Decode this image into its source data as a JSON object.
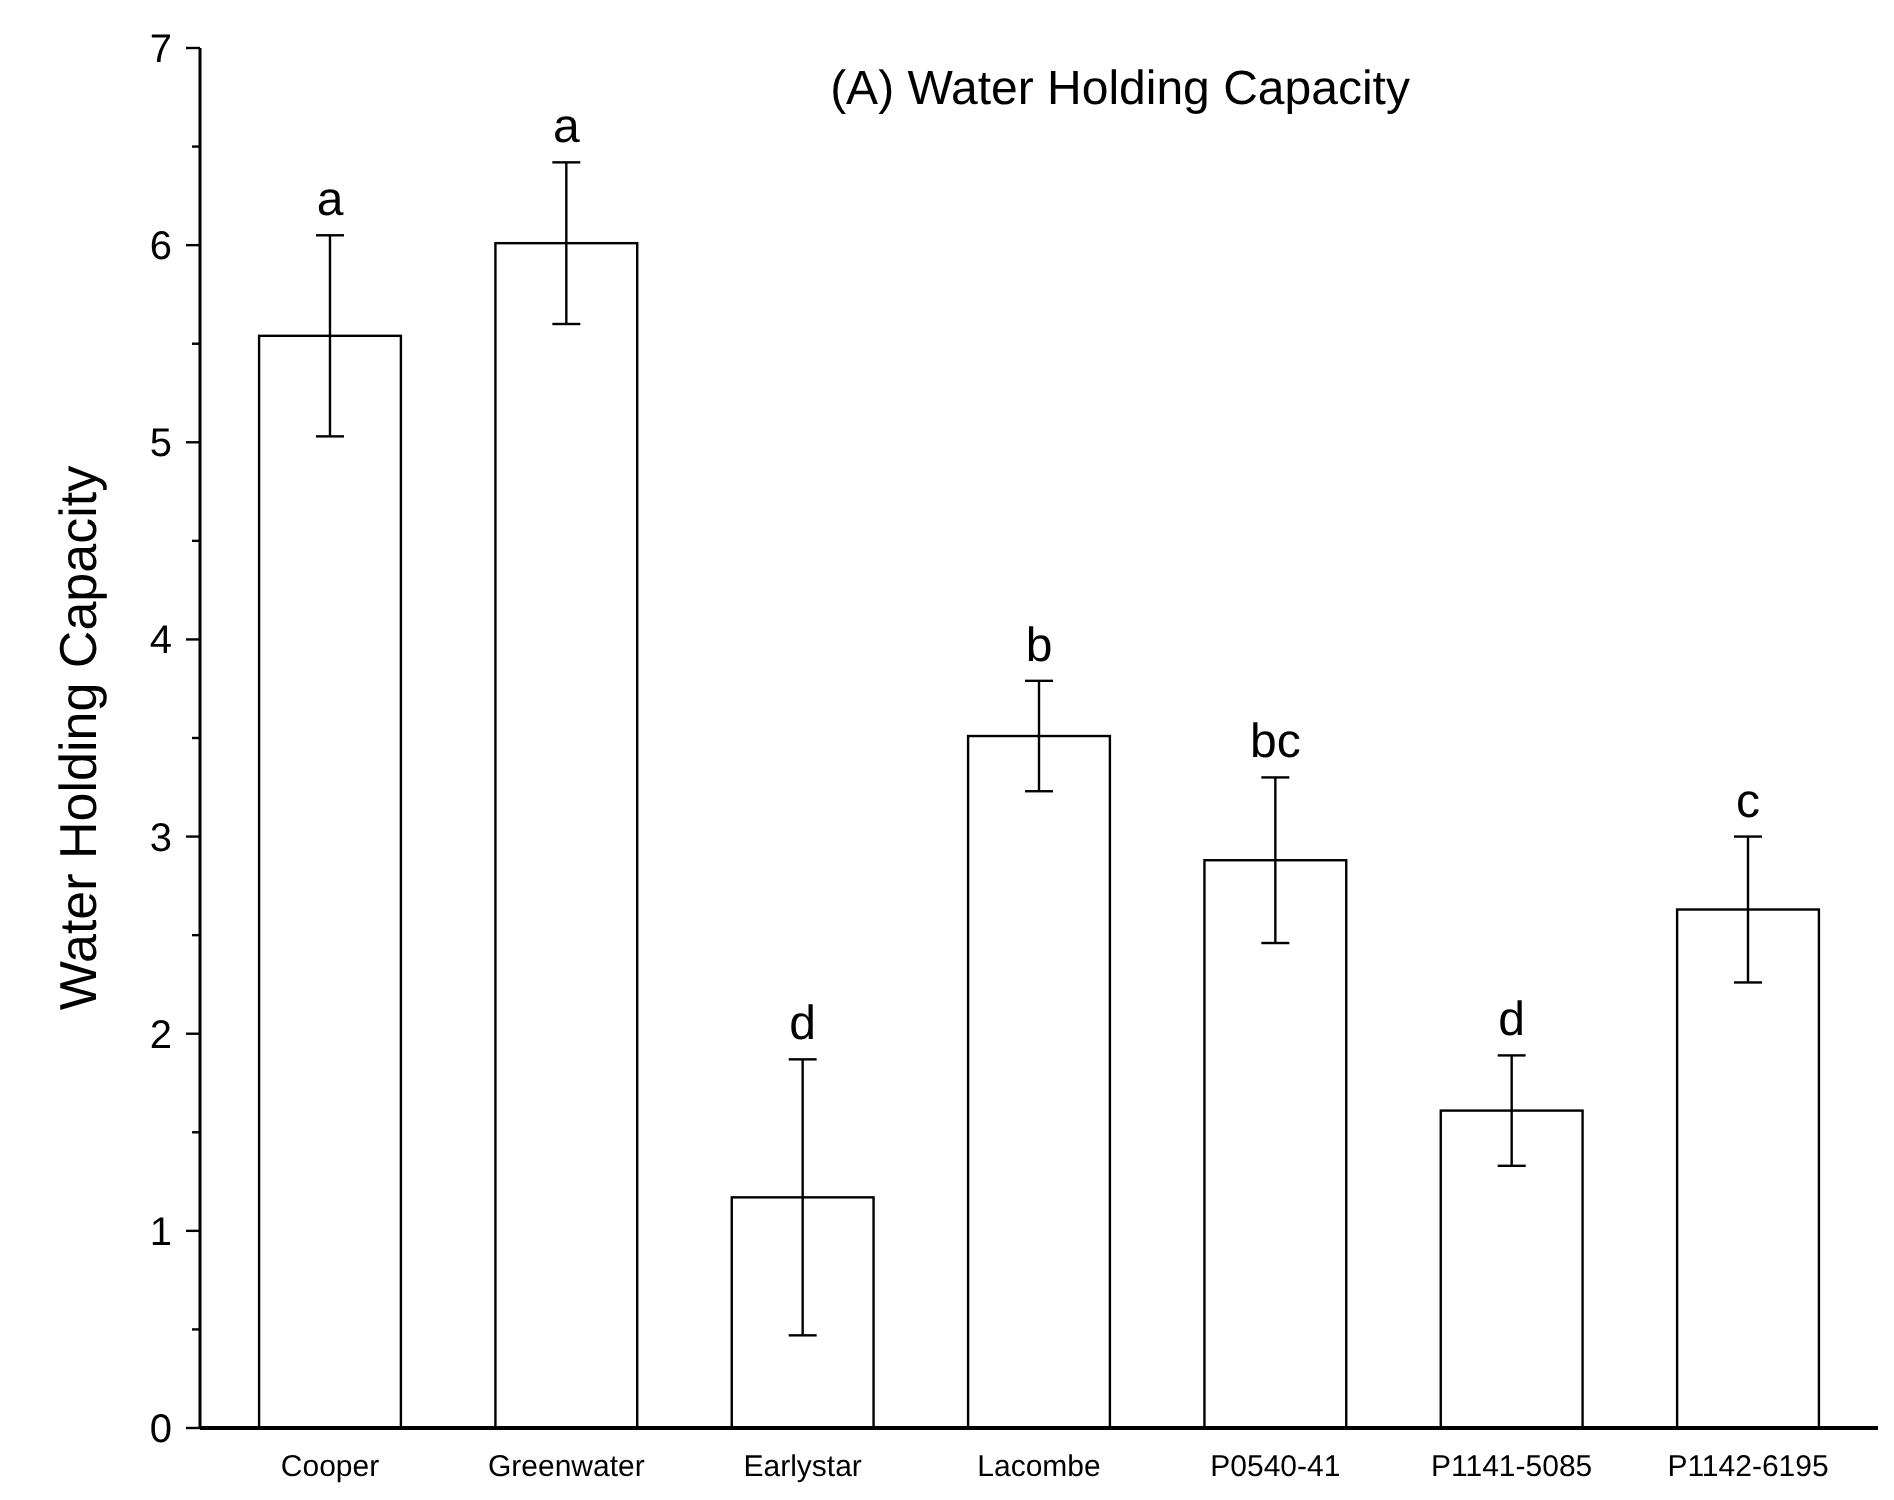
{
  "chart_data": {
    "type": "bar",
    "title": "(A) Water Holding Capacity",
    "ylabel": "Water Holding Capacity",
    "categories": [
      "Cooper",
      "Greenwater",
      "Earlystar",
      "Lacombe",
      "P0540-41",
      "P1141-5085",
      "P1142-6195"
    ],
    "values": [
      5.54,
      6.01,
      1.17,
      3.51,
      2.88,
      1.61,
      2.63
    ],
    "errors": [
      0.51,
      0.41,
      0.7,
      0.28,
      0.42,
      0.28,
      0.37
    ],
    "color": "#ffffff",
    "ylim": [
      0,
      7
    ],
    "yticks": [
      0,
      {
        "value": 0.5,
        "label": null
      },
      1,
      {
        "value": 1.5,
        "label": null
      },
      2,
      {
        "value": 2.5,
        "label": null
      },
      3,
      {
        "value": 3.5,
        "label": null
      },
      4,
      {
        "value": 4.5,
        "label": null
      },
      5,
      {
        "value": 5.5,
        "label": null
      },
      6,
      {
        "value": 6.5,
        "label": null
      },
      7
    ],
    "annotations": [
      {
        "text": "a",
        "x": "Cooper",
        "y": 6.05
      },
      {
        "text": "a",
        "x": "Greenwater",
        "y": 6.42
      },
      {
        "text": "d",
        "x": "Earlystar",
        "y": 1.87
      },
      {
        "text": "b",
        "x": "Lacombe",
        "y": 3.79
      },
      {
        "text": "bc",
        "x": "P0540-41",
        "y": 3.3
      },
      {
        "text": "d",
        "x": "P1141-5085",
        "y": 1.89
      },
      {
        "text": "c",
        "x": "P1142-6195",
        "y": 3.0
      }
    ],
    "grid": false
  }
}
